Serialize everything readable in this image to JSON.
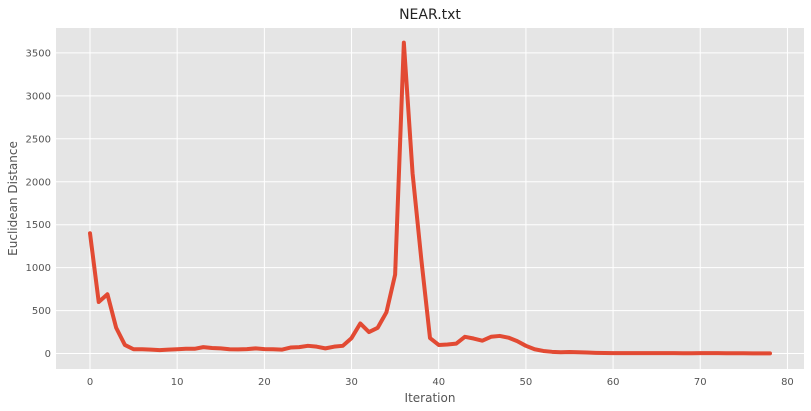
{
  "chart_data": {
    "type": "line",
    "title": "NEAR.txt",
    "xlabel": "Iteration",
    "ylabel": "Euclidean Distance",
    "xlim": [
      -3.9,
      81.9
    ],
    "ylim": [
      -180,
      3790
    ],
    "xticks": [
      0,
      10,
      20,
      30,
      40,
      50,
      60,
      70,
      80
    ],
    "yticks": [
      0,
      500,
      1000,
      1500,
      2000,
      2500,
      3000,
      3500
    ],
    "grid": true,
    "legend": "none",
    "colors": {
      "line": "#E24A33",
      "plot_bg": "#E5E5E5",
      "grid": "#FFFFFF"
    },
    "series": [
      {
        "x": [
          0,
          1,
          2,
          3,
          4,
          5,
          6,
          7,
          8,
          9,
          10,
          11,
          12,
          13,
          14,
          15,
          16,
          17,
          18,
          19,
          20,
          21,
          22,
          23,
          24,
          25,
          26,
          27,
          28,
          29,
          30,
          31,
          32,
          33,
          34,
          35,
          36,
          37,
          38,
          39,
          40,
          41,
          42,
          43,
          44,
          45,
          46,
          47,
          48,
          49,
          50,
          51,
          52,
          53,
          54,
          55,
          56,
          57,
          58,
          59,
          60,
          61,
          62,
          63,
          64,
          65,
          66,
          67,
          68,
          69,
          70,
          71,
          72,
          73,
          74,
          75,
          76,
          77,
          78
        ],
        "values": [
          1400,
          600,
          690,
          300,
          100,
          50,
          50,
          45,
          40,
          45,
          50,
          55,
          55,
          75,
          65,
          60,
          50,
          48,
          52,
          60,
          52,
          50,
          45,
          70,
          75,
          90,
          80,
          60,
          80,
          90,
          180,
          350,
          250,
          300,
          480,
          920,
          3620,
          2100,
          1100,
          180,
          100,
          105,
          115,
          195,
          175,
          150,
          195,
          205,
          185,
          145,
          90,
          50,
          30,
          20,
          15,
          18,
          15,
          12,
          8,
          6,
          5,
          5,
          5,
          5,
          5,
          5,
          5,
          5,
          4,
          4,
          5,
          5,
          5,
          4,
          4,
          4,
          2,
          2,
          2
        ]
      }
    ]
  }
}
